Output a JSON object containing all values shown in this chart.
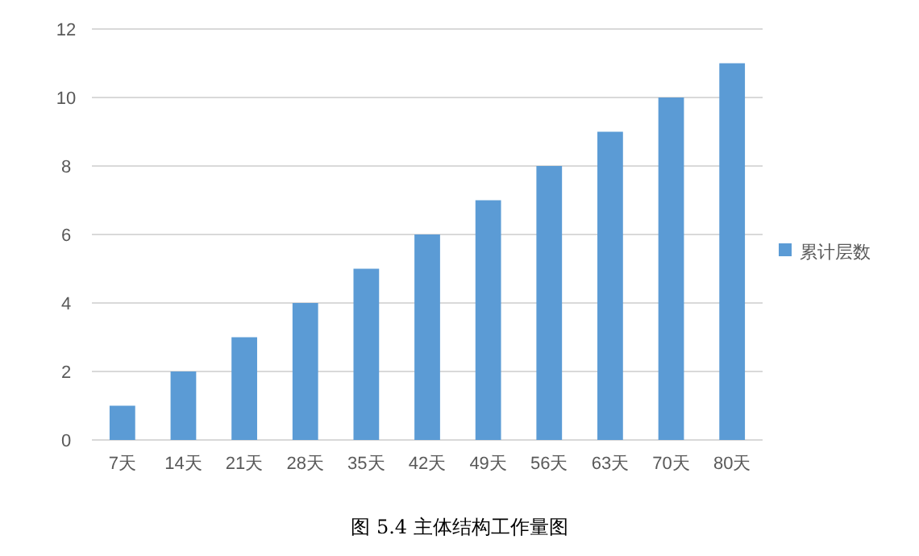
{
  "chart_data": {
    "type": "bar",
    "categories": [
      "7天",
      "14天",
      "21天",
      "28天",
      "35天",
      "42天",
      "49天",
      "56天",
      "63天",
      "70天",
      "80天"
    ],
    "series": [
      {
        "name": "累计层数",
        "color": "#5b9bd5",
        "values": [
          1,
          2,
          3,
          4,
          5,
          6,
          7,
          8,
          9,
          10,
          11
        ]
      }
    ],
    "ylim": [
      0,
      12
    ],
    "yticks": [
      0,
      2,
      4,
      6,
      8,
      10,
      12
    ],
    "grid": "y",
    "legend": "right",
    "annotations": [
      "图 5.4 主体结构工作量图"
    ]
  }
}
